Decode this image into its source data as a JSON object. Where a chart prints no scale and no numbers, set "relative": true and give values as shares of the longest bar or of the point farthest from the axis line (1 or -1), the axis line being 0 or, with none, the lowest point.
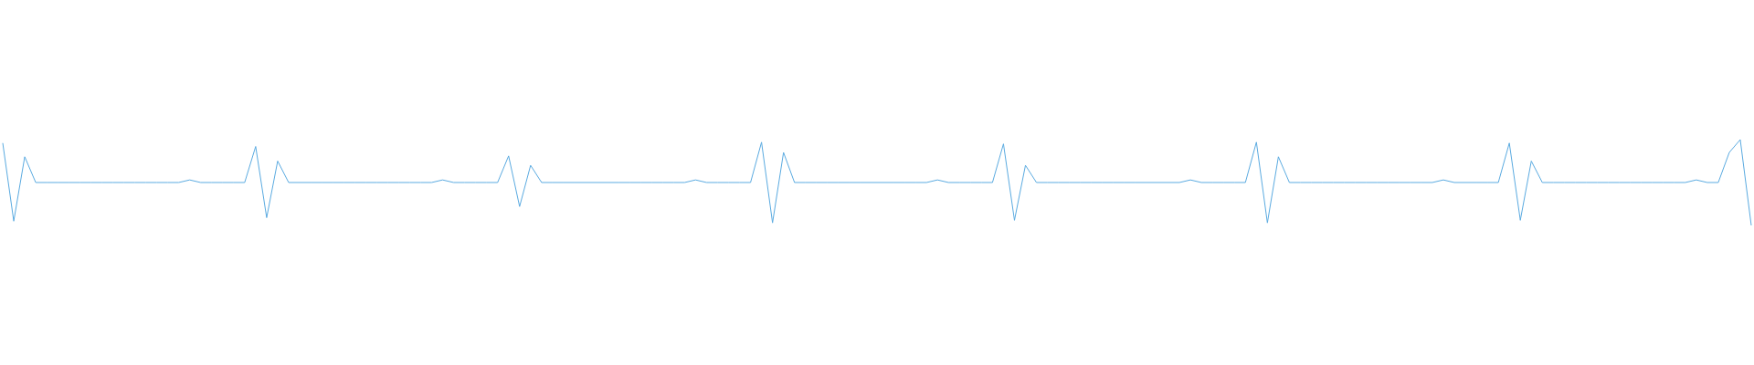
{
  "chart_data": {
    "type": "line",
    "relative": true,
    "marker": "none",
    "line_style": "solid",
    "categories": [
      null,
      null,
      null,
      null,
      null,
      null,
      null,
      null,
      null,
      null,
      null,
      null,
      null,
      null,
      null,
      null,
      null,
      null,
      null,
      null,
      null,
      null,
      null,
      null,
      null,
      null,
      null,
      null,
      null,
      null,
      null,
      null,
      null,
      null,
      null,
      null,
      null,
      null,
      null,
      null,
      null,
      null,
      null,
      null,
      null,
      null,
      null,
      null,
      null,
      null,
      null,
      null,
      null,
      null,
      null,
      null,
      null,
      null,
      null,
      null,
      null,
      null,
      null,
      null,
      null,
      null,
      null,
      null,
      null,
      null,
      null,
      null,
      null,
      null,
      null,
      null,
      null,
      null,
      null,
      null,
      null,
      null,
      null,
      null,
      null,
      null,
      null,
      null,
      null,
      null,
      null,
      null,
      null,
      null,
      null,
      null,
      null,
      null,
      null,
      null,
      null,
      null,
      null,
      null,
      null,
      null,
      null,
      null,
      null,
      null,
      null,
      null,
      null,
      null,
      null,
      null,
      null,
      null,
      null,
      null,
      null,
      null,
      null,
      null,
      null,
      null,
      null,
      null,
      null,
      null,
      null,
      null,
      null,
      null,
      null,
      null,
      null,
      null,
      null,
      null,
      null,
      null,
      null,
      null,
      null,
      null,
      null,
      null,
      null,
      null,
      null,
      null,
      null,
      null,
      null,
      null,
      null,
      null,
      null,
      null
    ],
    "series": [
      {
        "color": "#5aaae0",
        "values": [
          0.96,
          0.05,
          0.8,
          0.5,
          0.5,
          0.5,
          0.5,
          0.5,
          0.5,
          0.5,
          0.5,
          0.5,
          0.5,
          0.5,
          0.5,
          0.5,
          0.5,
          0.53,
          0.5,
          0.5,
          0.5,
          0.5,
          0.5,
          0.92,
          0.09,
          0.75,
          0.5,
          0.5,
          0.5,
          0.5,
          0.5,
          0.5,
          0.5,
          0.5,
          0.5,
          0.5,
          0.5,
          0.5,
          0.5,
          0.5,
          0.53,
          0.5,
          0.5,
          0.5,
          0.5,
          0.5,
          0.81,
          0.22,
          0.7,
          0.5,
          0.5,
          0.5,
          0.5,
          0.5,
          0.5,
          0.5,
          0.5,
          0.5,
          0.5,
          0.5,
          0.5,
          0.5,
          0.5,
          0.53,
          0.5,
          0.5,
          0.5,
          0.5,
          0.5,
          0.97,
          0.03,
          0.85,
          0.5,
          0.5,
          0.5,
          0.5,
          0.5,
          0.5,
          0.5,
          0.5,
          0.5,
          0.5,
          0.5,
          0.5,
          0.5,
          0.53,
          0.5,
          0.5,
          0.5,
          0.5,
          0.5,
          0.95,
          0.06,
          0.7,
          0.5,
          0.5,
          0.5,
          0.5,
          0.5,
          0.5,
          0.5,
          0.5,
          0.5,
          0.5,
          0.5,
          0.5,
          0.5,
          0.5,
          0.53,
          0.5,
          0.5,
          0.5,
          0.5,
          0.5,
          0.97,
          0.03,
          0.8,
          0.5,
          0.5,
          0.5,
          0.5,
          0.5,
          0.5,
          0.5,
          0.5,
          0.5,
          0.5,
          0.5,
          0.5,
          0.5,
          0.5,
          0.53,
          0.5,
          0.5,
          0.5,
          0.5,
          0.5,
          0.96,
          0.06,
          0.75,
          0.5,
          0.5,
          0.5,
          0.5,
          0.5,
          0.5,
          0.5,
          0.5,
          0.5,
          0.5,
          0.5,
          0.5,
          0.5,
          0.5,
          0.53,
          0.5,
          0.5,
          0.85,
          1,
          0
        ]
      }
    ]
  }
}
